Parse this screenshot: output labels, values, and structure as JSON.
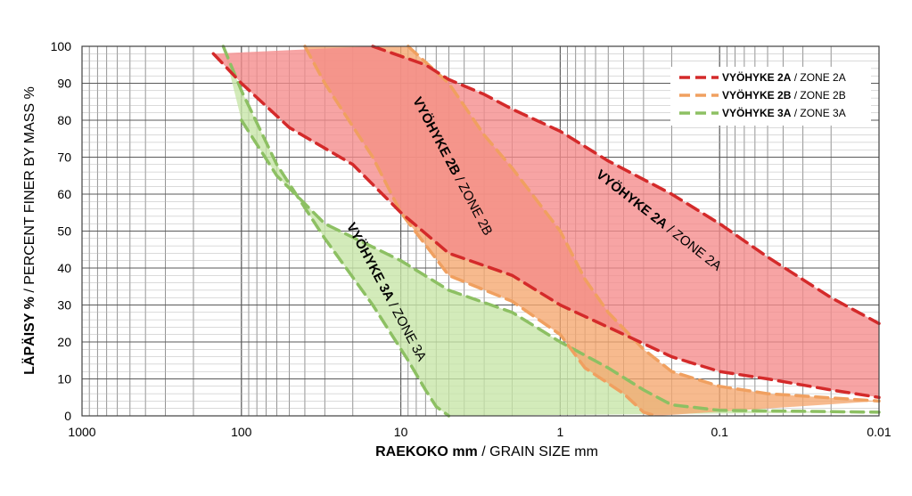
{
  "chart_data": {
    "type": "area",
    "x_scale": "log",
    "x_reversed": true,
    "xlim": [
      1000,
      0.01
    ],
    "ylim": [
      0,
      100
    ],
    "x_ticks": [
      {
        "value": 1000,
        "label": "1000"
      },
      {
        "value": 100,
        "label": "100"
      },
      {
        "value": 10,
        "label": "10"
      },
      {
        "value": 1,
        "label": "1"
      },
      {
        "value": 0.1,
        "label": "0.1"
      },
      {
        "value": 0.01,
        "label": "0.01"
      }
    ],
    "y_ticks": [
      {
        "value": 0,
        "label": "0"
      },
      {
        "value": 10,
        "label": "10"
      },
      {
        "value": 20,
        "label": "20"
      },
      {
        "value": 30,
        "label": "30"
      },
      {
        "value": 40,
        "label": "40"
      },
      {
        "value": 50,
        "label": "50"
      },
      {
        "value": 60,
        "label": "60"
      },
      {
        "value": 70,
        "label": "70"
      },
      {
        "value": 80,
        "label": "80"
      },
      {
        "value": 90,
        "label": "90"
      },
      {
        "value": 100,
        "label": "100"
      }
    ],
    "xlabel_bold": "RAEKOKO mm",
    "xlabel_rest": " / GRAIN SIZE mm",
    "ylabel_bold": "LÄPÄISY %",
    "ylabel_rest": " / PERCENT FINER BY MASS %",
    "grid": true,
    "legend_position": "top-right",
    "zones": [
      {
        "id": "3a",
        "legend_bold": "VYÖHYKE 3A",
        "legend_rest": " / ZONE 3A",
        "label_bold": "VYÖHYKE 3A",
        "label_rest": " / ZONE 3A",
        "label_pos": {
          "x": 13,
          "y": 33
        },
        "fill": "#c6e5a7",
        "line": "#8dc063",
        "fine_bound": [
          [
            100,
            80
          ],
          [
            60,
            65
          ],
          [
            30,
            52
          ],
          [
            10,
            42
          ],
          [
            5,
            34
          ],
          [
            2,
            28
          ],
          [
            1,
            20
          ],
          [
            0.5,
            13
          ],
          [
            0.3,
            7
          ],
          [
            0.2,
            3
          ],
          [
            0.1,
            1.5
          ],
          [
            0.01,
            1
          ]
        ],
        "coarse_bound": [
          [
            130,
            100
          ],
          [
            100,
            88
          ],
          [
            60,
            68
          ],
          [
            30,
            48
          ],
          [
            15,
            30
          ],
          [
            9,
            15
          ],
          [
            7,
            7
          ],
          [
            6,
            2.5
          ],
          [
            5,
            0
          ]
        ]
      },
      {
        "id": "2b",
        "legend_bold": "VYÖHYKE 2B",
        "legend_rest": " / ZONE 2B",
        "label_bold": "VYÖHYKE 2B",
        "label_rest": " / ZONE 2B",
        "label_pos": {
          "x": 5,
          "y": 67
        },
        "fill": "#f5a76e",
        "line": "#f0a060",
        "fine_bound": [
          [
            9,
            100
          ],
          [
            5,
            90
          ],
          [
            3,
            76
          ],
          [
            2,
            67
          ],
          [
            1,
            50
          ],
          [
            0.7,
            37
          ],
          [
            0.5,
            28
          ],
          [
            0.3,
            18
          ],
          [
            0.2,
            12
          ],
          [
            0.1,
            8
          ],
          [
            0.05,
            6
          ],
          [
            0.01,
            4
          ]
        ],
        "coarse_bound": [
          [
            40,
            100
          ],
          [
            30,
            90
          ],
          [
            15,
            70
          ],
          [
            10,
            55
          ],
          [
            5,
            38
          ],
          [
            2,
            31
          ],
          [
            1,
            22
          ],
          [
            0.7,
            13
          ],
          [
            0.4,
            6
          ],
          [
            0.3,
            1
          ],
          [
            0.25,
            0
          ]
        ]
      },
      {
        "id": "2a",
        "legend_bold": "VYÖHYKE 2A",
        "legend_rest": " / ZONE 2A",
        "label_bold": "VYÖHYKE 2A",
        "label_rest": " / ZONE 2A",
        "label_pos": {
          "x": 0.25,
          "y": 52
        },
        "fill": "#f58a8a",
        "line": "#d42a2a",
        "fine_bound": [
          [
            15,
            100
          ],
          [
            7,
            95
          ],
          [
            5,
            91
          ],
          [
            3,
            87
          ],
          [
            2,
            83
          ],
          [
            1,
            77
          ],
          [
            0.5,
            69
          ],
          [
            0.2,
            60
          ],
          [
            0.1,
            52
          ],
          [
            0.05,
            43
          ],
          [
            0.02,
            32
          ],
          [
            0.01,
            25
          ]
        ],
        "coarse_bound": [
          [
            150,
            98
          ],
          [
            100,
            90
          ],
          [
            50,
            78
          ],
          [
            20,
            68
          ],
          [
            10,
            55
          ],
          [
            5,
            44
          ],
          [
            2,
            38
          ],
          [
            1,
            30
          ],
          [
            0.5,
            24
          ],
          [
            0.2,
            16
          ],
          [
            0.1,
            12
          ],
          [
            0.05,
            10
          ],
          [
            0.02,
            7
          ],
          [
            0.01,
            5
          ]
        ]
      }
    ]
  }
}
